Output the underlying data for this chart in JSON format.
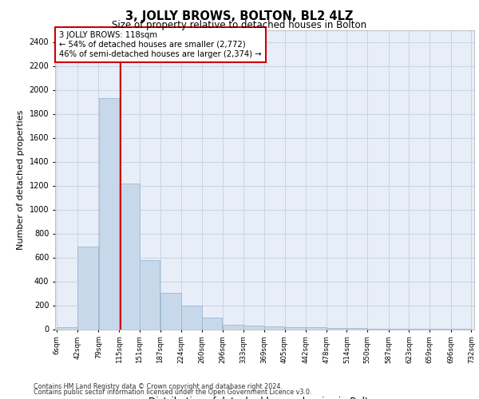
{
  "title": "3, JOLLY BROWS, BOLTON, BL2 4LZ",
  "subtitle": "Size of property relative to detached houses in Bolton",
  "xlabel": "Distribution of detached houses by size in Bolton",
  "ylabel": "Number of detached properties",
  "footer1": "Contains HM Land Registry data © Crown copyright and database right 2024.",
  "footer2": "Contains public sector information licensed under the Open Government Licence v3.0.",
  "annotation_title": "3 JOLLY BROWS: 118sqm",
  "annotation_line1": "← 54% of detached houses are smaller (2,772)",
  "annotation_line2": "46% of semi-detached houses are larger (2,374) →",
  "property_size": 118,
  "bar_color": "#c8d8eb",
  "bar_edgecolor": "#9ab8d0",
  "redline_color": "#cc0000",
  "grid_color": "#c8d4e4",
  "background_color": "#e8eef8",
  "bar_left_edges": [
    6,
    42,
    79,
    115,
    151,
    187,
    224,
    260,
    296,
    333,
    369,
    405,
    442,
    478,
    514,
    550,
    587,
    623,
    659,
    696
  ],
  "bar_widths": [
    36,
    37,
    36,
    36,
    36,
    37,
    36,
    36,
    37,
    36,
    36,
    37,
    36,
    36,
    36,
    37,
    36,
    36,
    37,
    36
  ],
  "bar_heights": [
    18,
    690,
    1930,
    1220,
    575,
    305,
    195,
    95,
    38,
    28,
    22,
    14,
    14,
    9,
    9,
    5,
    4,
    4,
    4,
    4
  ],
  "xtick_labels": [
    "6sqm",
    "42sqm",
    "79sqm",
    "115sqm",
    "151sqm",
    "187sqm",
    "224sqm",
    "260sqm",
    "296sqm",
    "333sqm",
    "369sqm",
    "405sqm",
    "442sqm",
    "478sqm",
    "514sqm",
    "550sqm",
    "587sqm",
    "623sqm",
    "659sqm",
    "696sqm",
    "732sqm"
  ],
  "ylim": [
    0,
    2500
  ],
  "yticks": [
    0,
    200,
    400,
    600,
    800,
    1000,
    1200,
    1400,
    1600,
    1800,
    2000,
    2200,
    2400
  ]
}
